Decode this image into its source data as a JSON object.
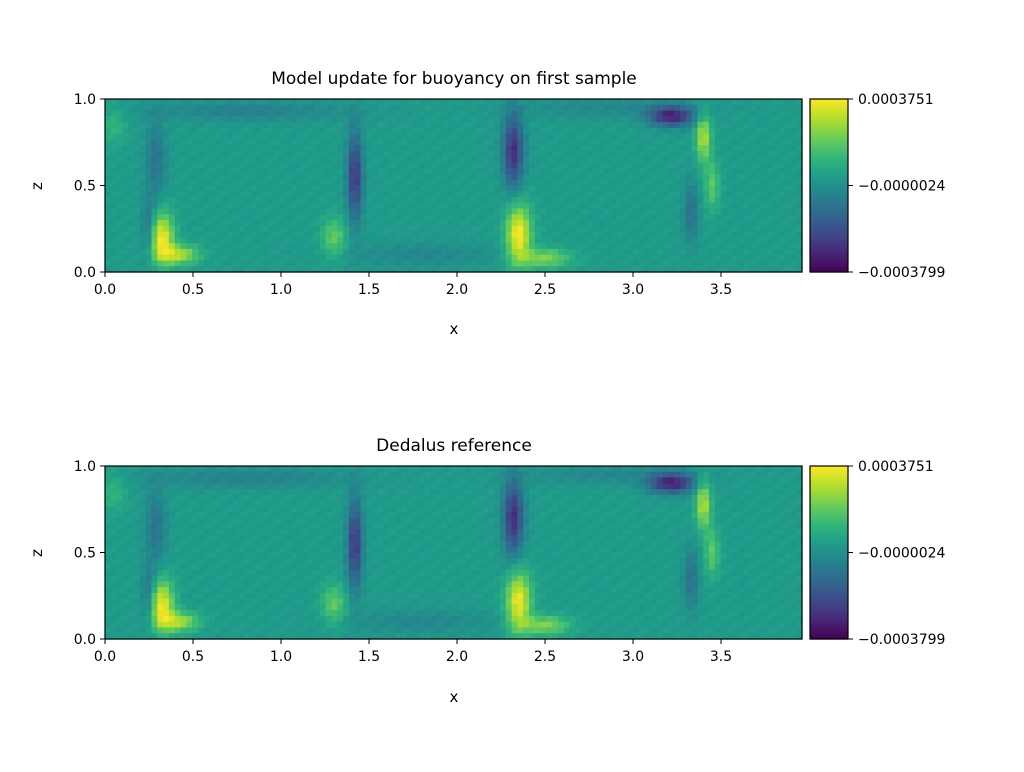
{
  "chart_data": [
    {
      "type": "heatmap",
      "title": "Model update for buoyancy on first sample",
      "xlabel": "x",
      "ylabel": "z",
      "xlim": [
        0,
        3.96
      ],
      "ylim": [
        0,
        1
      ],
      "xticks": [
        "0.0",
        "0.5",
        "1.0",
        "1.5",
        "2.0",
        "2.5",
        "3.0",
        "3.5"
      ],
      "yticks": [
        "0.0",
        "0.5",
        "1.0"
      ],
      "colormap": "viridis",
      "clim": [
        -0.0003799,
        0.0003751
      ],
      "colorbar_ticks": [
        "0.0003751",
        "−0.0000024",
        "−0.0003799"
      ],
      "value_scale": 0.0001,
      "background": 0.3,
      "field_features": [
        {
          "x": 0.32,
          "z": 0.2,
          "sx": 0.05,
          "sz": 0.1,
          "amp": 3.4
        },
        {
          "x": 0.42,
          "z": 0.1,
          "sx": 0.08,
          "sz": 0.04,
          "amp": 2.5
        },
        {
          "x": 0.25,
          "z": 0.25,
          "sx": 0.03,
          "sz": 0.12,
          "amp": -1.5
        },
        {
          "x": 0.29,
          "z": 0.65,
          "sx": 0.04,
          "sz": 0.15,
          "amp": -1.2
        },
        {
          "x": 1.42,
          "z": 0.55,
          "sx": 0.03,
          "sz": 0.18,
          "amp": -2.9
        },
        {
          "x": 1.3,
          "z": 0.2,
          "sx": 0.05,
          "sz": 0.08,
          "amp": 1.6
        },
        {
          "x": 2.32,
          "z": 0.7,
          "sx": 0.04,
          "sz": 0.15,
          "amp": -3.1
        },
        {
          "x": 2.35,
          "z": 0.22,
          "sx": 0.05,
          "sz": 0.12,
          "amp": 3.5
        },
        {
          "x": 2.5,
          "z": 0.08,
          "sx": 0.1,
          "sz": 0.04,
          "amp": 2.0
        },
        {
          "x": 3.22,
          "z": 0.9,
          "sx": 0.09,
          "sz": 0.04,
          "amp": -3.4
        },
        {
          "x": 3.4,
          "z": 0.78,
          "sx": 0.03,
          "sz": 0.1,
          "amp": 2.6
        },
        {
          "x": 3.33,
          "z": 0.35,
          "sx": 0.03,
          "sz": 0.12,
          "amp": -1.3
        },
        {
          "x": 3.45,
          "z": 0.5,
          "sx": 0.03,
          "sz": 0.1,
          "amp": 1.5
        },
        {
          "x": 0.8,
          "z": 0.93,
          "sx": 0.4,
          "sz": 0.04,
          "amp": -0.8
        },
        {
          "x": 2.85,
          "z": 0.95,
          "sx": 0.35,
          "sz": 0.04,
          "amp": -0.6
        },
        {
          "x": 1.8,
          "z": 0.1,
          "sx": 0.3,
          "sz": 0.05,
          "amp": -0.6
        },
        {
          "x": 0.05,
          "z": 0.85,
          "sx": 0.05,
          "sz": 0.08,
          "amp": 0.8
        }
      ]
    },
    {
      "type": "heatmap",
      "title": "Dedalus reference",
      "xlabel": "x",
      "ylabel": "z",
      "xlim": [
        0,
        3.96
      ],
      "ylim": [
        0,
        1
      ],
      "xticks": [
        "0.0",
        "0.5",
        "1.0",
        "1.5",
        "2.0",
        "2.5",
        "3.0",
        "3.5"
      ],
      "yticks": [
        "0.0",
        "0.5",
        "1.0"
      ],
      "colormap": "viridis",
      "clim": [
        -0.0003799,
        0.0003751
      ],
      "colorbar_ticks": [
        "0.0003751",
        "−0.0000024",
        "−0.0003799"
      ],
      "value_scale": 0.0001,
      "background": 0.3,
      "field_features": [
        {
          "x": 0.32,
          "z": 0.2,
          "sx": 0.05,
          "sz": 0.1,
          "amp": 3.3
        },
        {
          "x": 0.42,
          "z": 0.1,
          "sx": 0.08,
          "sz": 0.04,
          "amp": 2.4
        },
        {
          "x": 0.25,
          "z": 0.25,
          "sx": 0.03,
          "sz": 0.12,
          "amp": -1.5
        },
        {
          "x": 0.29,
          "z": 0.65,
          "sx": 0.04,
          "sz": 0.15,
          "amp": -1.2
        },
        {
          "x": 1.42,
          "z": 0.55,
          "sx": 0.03,
          "sz": 0.18,
          "amp": -2.9
        },
        {
          "x": 1.3,
          "z": 0.2,
          "sx": 0.05,
          "sz": 0.08,
          "amp": 1.6
        },
        {
          "x": 2.32,
          "z": 0.7,
          "sx": 0.04,
          "sz": 0.15,
          "amp": -3.1
        },
        {
          "x": 2.35,
          "z": 0.22,
          "sx": 0.05,
          "sz": 0.12,
          "amp": 3.3
        },
        {
          "x": 2.5,
          "z": 0.08,
          "sx": 0.1,
          "sz": 0.04,
          "amp": 2.0
        },
        {
          "x": 3.22,
          "z": 0.9,
          "sx": 0.09,
          "sz": 0.04,
          "amp": -3.4
        },
        {
          "x": 3.4,
          "z": 0.78,
          "sx": 0.03,
          "sz": 0.1,
          "amp": 2.6
        },
        {
          "x": 3.33,
          "z": 0.35,
          "sx": 0.03,
          "sz": 0.12,
          "amp": -1.3
        },
        {
          "x": 3.45,
          "z": 0.5,
          "sx": 0.03,
          "sz": 0.1,
          "amp": 1.5
        },
        {
          "x": 0.8,
          "z": 0.93,
          "sx": 0.4,
          "sz": 0.04,
          "amp": -0.8
        },
        {
          "x": 2.85,
          "z": 0.95,
          "sx": 0.35,
          "sz": 0.04,
          "amp": -0.6
        },
        {
          "x": 1.8,
          "z": 0.1,
          "sx": 0.3,
          "sz": 0.05,
          "amp": -0.6
        },
        {
          "x": 0.05,
          "z": 0.85,
          "sx": 0.05,
          "sz": 0.08,
          "amp": 0.8
        }
      ]
    }
  ]
}
